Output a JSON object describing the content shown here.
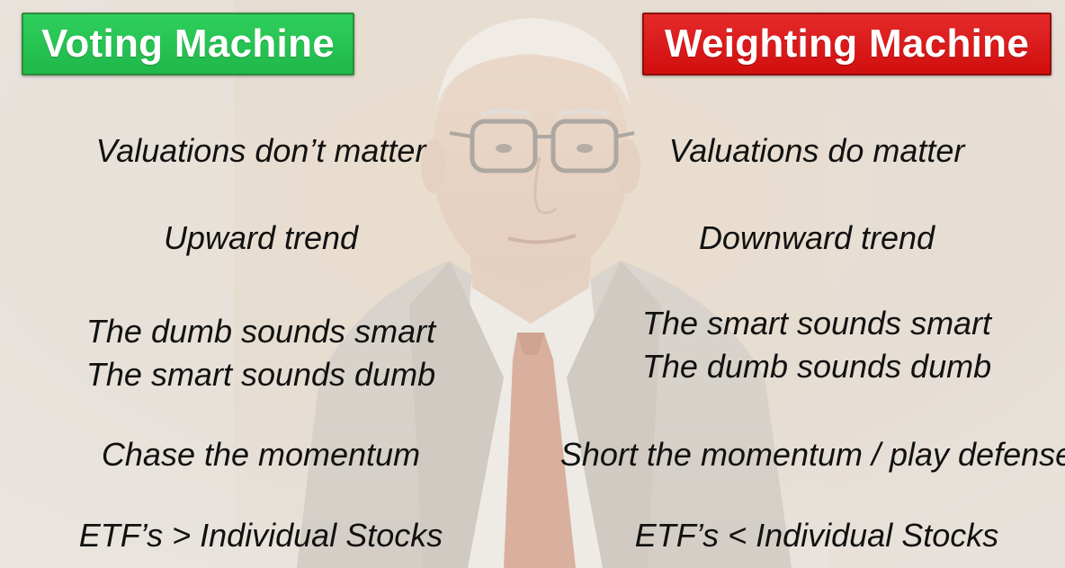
{
  "colors": {
    "voting_header": "#1fb84a",
    "weighting_header": "#d10e0e",
    "text": "#111111"
  },
  "background": {
    "description_icon": "portrait-photo",
    "tint": "#d8cfc5"
  },
  "voting": {
    "title": "Voting Machine",
    "items": [
      {
        "line1": "Valuations don’t matter"
      },
      {
        "line1": "Upward trend"
      },
      {
        "line1": "The dumb sounds smart",
        "line2": "The smart sounds dumb"
      },
      {
        "line1": "Chase the momentum"
      },
      {
        "line1": "ETF’s > Individual Stocks"
      }
    ]
  },
  "weighting": {
    "title": "Weighting Machine",
    "items": [
      {
        "line1": "Valuations do matter"
      },
      {
        "line1": "Downward trend"
      },
      {
        "line1": "The smart sounds smart",
        "line2": "The dumb sounds dumb"
      },
      {
        "line1": "Short the momentum / play defense"
      },
      {
        "line1": "ETF’s < Individual Stocks"
      }
    ]
  }
}
